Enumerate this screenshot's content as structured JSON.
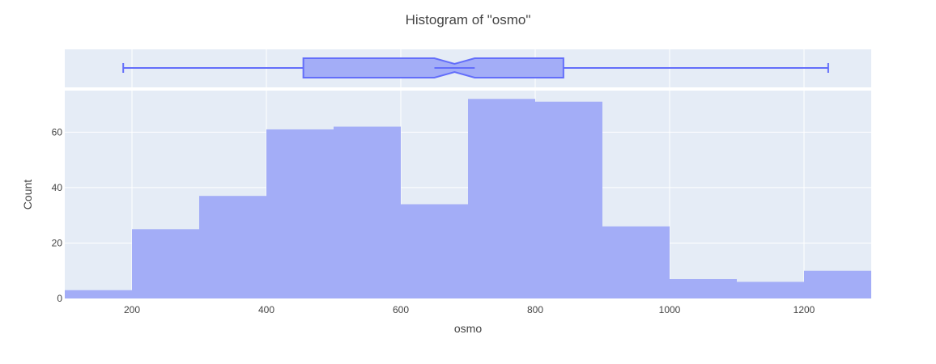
{
  "chart_data": {
    "type": "histogram",
    "title": "Histogram of \"osmo\"",
    "xlabel": "osmo",
    "ylabel": "Count",
    "xlim": [
      100,
      1300
    ],
    "ylim": [
      0,
      75
    ],
    "xticks": [
      200,
      400,
      600,
      800,
      1000,
      1200
    ],
    "yticks": [
      0,
      20,
      40,
      60
    ],
    "bin_width": 100,
    "bins": [
      {
        "start": 100,
        "end": 200,
        "count": 3
      },
      {
        "start": 200,
        "end": 300,
        "count": 25
      },
      {
        "start": 300,
        "end": 400,
        "count": 37
      },
      {
        "start": 400,
        "end": 500,
        "count": 61
      },
      {
        "start": 500,
        "end": 600,
        "count": 62
      },
      {
        "start": 600,
        "end": 700,
        "count": 34
      },
      {
        "start": 700,
        "end": 800,
        "count": 72
      },
      {
        "start": 800,
        "end": 900,
        "count": 71
      },
      {
        "start": 900,
        "end": 1000,
        "count": 26
      },
      {
        "start": 1000,
        "end": 1100,
        "count": 7
      },
      {
        "start": 1100,
        "end": 1200,
        "count": 6
      },
      {
        "start": 1200,
        "end": 1300,
        "count": 10
      }
    ],
    "boxplot": {
      "min": 187,
      "q1": 455,
      "median": 680,
      "q3": 842,
      "max": 1236,
      "notch_low": 650,
      "notch_high": 710,
      "notched": true
    },
    "grid": true,
    "colors": {
      "bar_fill": "#a3adf7",
      "box_fill": "#a3adf7",
      "box_line": "#636efa",
      "plot_bg": "#e5ecf6",
      "grid": "#ffffff"
    }
  }
}
